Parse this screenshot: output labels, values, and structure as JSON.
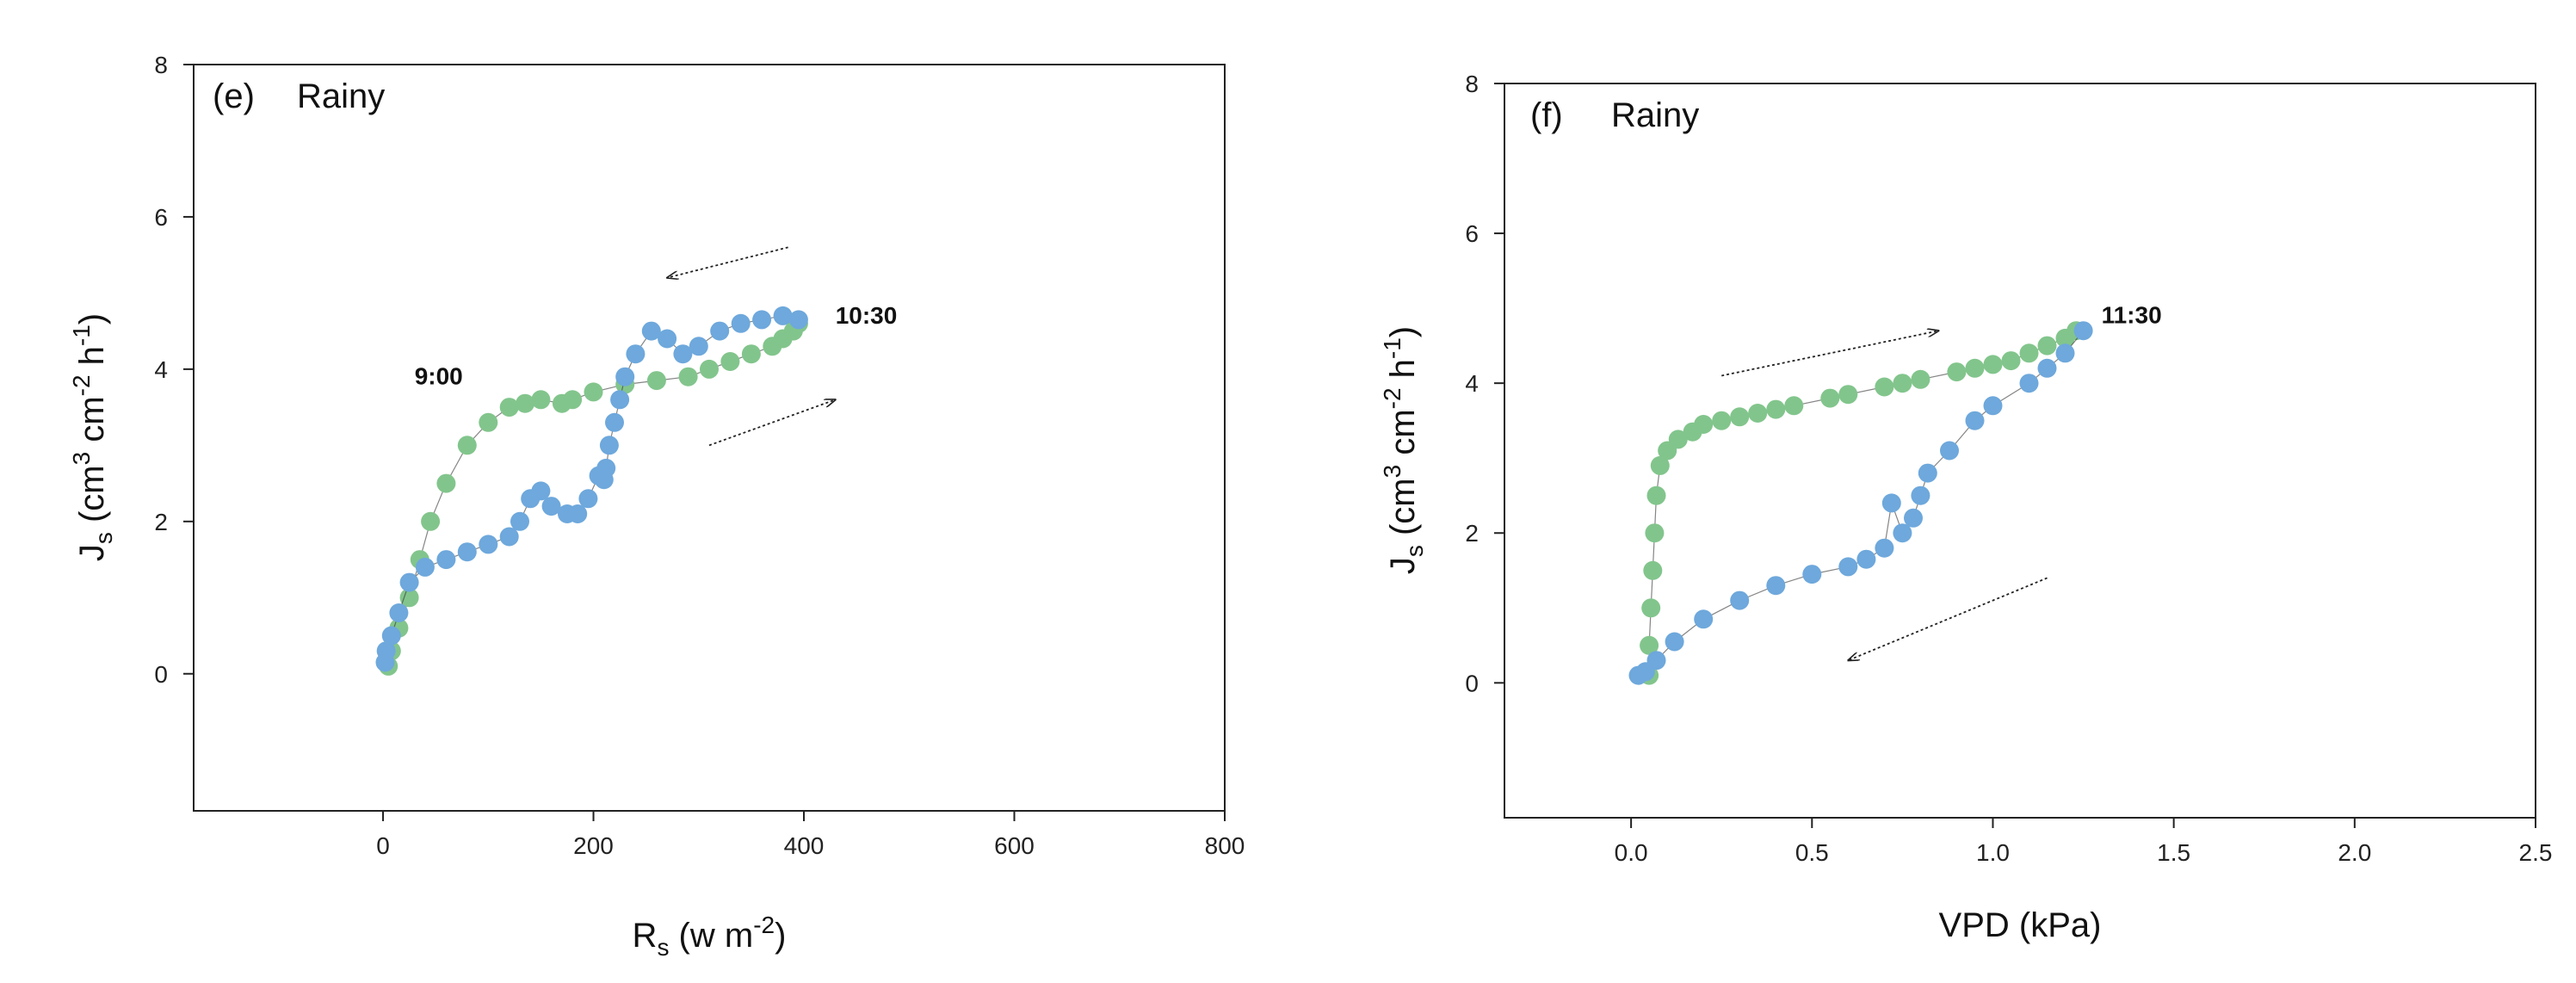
{
  "chart_data": [
    {
      "type": "scatter",
      "panel_label": "(e)",
      "condition": "Rainy",
      "ylabel": {
        "main": "J",
        "sub": "s",
        "unit": " (cm",
        "sup1": "3",
        "unit2": " cm",
        "sup2": "-2",
        "unit3": " h",
        "sup3": "-1",
        "close": ")"
      },
      "xlabel": {
        "main": "R",
        "sub": "s",
        "unit": " (w m",
        "sup1": "-2",
        "close": ")"
      },
      "xlim": [
        -180,
        800
      ],
      "ylim": [
        -1.8,
        8
      ],
      "xticks": [
        0,
        200,
        400,
        600,
        800
      ],
      "yticks": [
        0,
        2,
        4,
        6,
        8
      ],
      "colors": {
        "rising": "#82c58c",
        "falling": "#6ea8dc",
        "outline": "#222222"
      },
      "annotations": [
        {
          "text": "9:00",
          "x": 30,
          "y": 3.8
        },
        {
          "text": "10:30",
          "x": 430,
          "y": 4.6
        }
      ],
      "arrows": [
        {
          "x1": 385,
          "y1": 5.6,
          "x2": 270,
          "y2": 5.2
        },
        {
          "x1": 310,
          "y1": 3.0,
          "x2": 430,
          "y2": 3.6
        }
      ],
      "series": [
        {
          "name": "rising",
          "points": [
            [
              5,
              0.1
            ],
            [
              8,
              0.3
            ],
            [
              15,
              0.6
            ],
            [
              25,
              1.0
            ],
            [
              35,
              1.5
            ],
            [
              45,
              2.0
            ],
            [
              60,
              2.5
            ],
            [
              80,
              3.0
            ],
            [
              100,
              3.3
            ],
            [
              120,
              3.5
            ],
            [
              135,
              3.55
            ],
            [
              150,
              3.6
            ],
            [
              170,
              3.55
            ],
            [
              180,
              3.6
            ],
            [
              200,
              3.7
            ],
            [
              230,
              3.8
            ],
            [
              260,
              3.85
            ],
            [
              290,
              3.9
            ],
            [
              310,
              4.0
            ],
            [
              330,
              4.1
            ],
            [
              350,
              4.2
            ],
            [
              370,
              4.3
            ],
            [
              380,
              4.4
            ],
            [
              390,
              4.5
            ],
            [
              395,
              4.6
            ]
          ]
        },
        {
          "name": "falling",
          "points": [
            [
              395,
              4.65
            ],
            [
              380,
              4.7
            ],
            [
              360,
              4.65
            ],
            [
              340,
              4.6
            ],
            [
              320,
              4.5
            ],
            [
              300,
              4.3
            ],
            [
              285,
              4.2
            ],
            [
              270,
              4.4
            ],
            [
              255,
              4.5
            ],
            [
              240,
              4.2
            ],
            [
              230,
              3.9
            ],
            [
              225,
              3.6
            ],
            [
              220,
              3.3
            ],
            [
              215,
              3.0
            ],
            [
              212,
              2.7
            ],
            [
              210,
              2.55
            ],
            [
              205,
              2.6
            ],
            [
              195,
              2.3
            ],
            [
              185,
              2.1
            ],
            [
              175,
              2.1
            ],
            [
              160,
              2.2
            ],
            [
              150,
              2.4
            ],
            [
              140,
              2.3
            ],
            [
              130,
              2.0
            ],
            [
              120,
              1.8
            ],
            [
              100,
              1.7
            ],
            [
              80,
              1.6
            ],
            [
              60,
              1.5
            ],
            [
              40,
              1.4
            ],
            [
              25,
              1.2
            ],
            [
              15,
              0.8
            ],
            [
              8,
              0.5
            ],
            [
              3,
              0.3
            ],
            [
              2,
              0.15
            ]
          ]
        }
      ]
    },
    {
      "type": "scatter",
      "panel_label": "(f)",
      "condition": "Rainy",
      "ylabel": {
        "main": "J",
        "sub": "s",
        "unit": " (cm",
        "sup1": "3",
        "unit2": " cm",
        "sup2": "-2",
        "unit3": " h",
        "sup3": "-1",
        "close": ")"
      },
      "xlabel": {
        "main": "VPD (kPa)"
      },
      "xlim": [
        -0.35,
        2.5
      ],
      "ylim": [
        -1.8,
        8
      ],
      "xticks": [
        0.0,
        0.5,
        1.0,
        1.5,
        2.0,
        2.5
      ],
      "xtick_labels": [
        "0.0",
        "0.5",
        "1.0",
        "1.5",
        "2.0",
        "2.5"
      ],
      "yticks": [
        0,
        2,
        4,
        6,
        8
      ],
      "colors": {
        "rising": "#82c58c",
        "falling": "#6ea8dc",
        "outline": "#222222"
      },
      "annotations": [
        {
          "text": "11:30",
          "x": 1.3,
          "y": 4.8
        }
      ],
      "arrows": [
        {
          "x1": 0.25,
          "y1": 4.1,
          "x2": 0.85,
          "y2": 4.7
        },
        {
          "x1": 1.15,
          "y1": 1.4,
          "x2": 0.6,
          "y2": 0.3
        }
      ],
      "series": [
        {
          "name": "rising",
          "points": [
            [
              0.05,
              0.1
            ],
            [
              0.05,
              0.5
            ],
            [
              0.055,
              1.0
            ],
            [
              0.06,
              1.5
            ],
            [
              0.065,
              2.0
            ],
            [
              0.07,
              2.5
            ],
            [
              0.08,
              2.9
            ],
            [
              0.1,
              3.1
            ],
            [
              0.13,
              3.25
            ],
            [
              0.17,
              3.35
            ],
            [
              0.2,
              3.45
            ],
            [
              0.25,
              3.5
            ],
            [
              0.3,
              3.55
            ],
            [
              0.35,
              3.6
            ],
            [
              0.4,
              3.65
            ],
            [
              0.45,
              3.7
            ],
            [
              0.55,
              3.8
            ],
            [
              0.6,
              3.85
            ],
            [
              0.7,
              3.95
            ],
            [
              0.75,
              4.0
            ],
            [
              0.8,
              4.05
            ],
            [
              0.9,
              4.15
            ],
            [
              0.95,
              4.2
            ],
            [
              1.0,
              4.25
            ],
            [
              1.05,
              4.3
            ],
            [
              1.1,
              4.4
            ],
            [
              1.15,
              4.5
            ],
            [
              1.2,
              4.6
            ],
            [
              1.23,
              4.7
            ]
          ]
        },
        {
          "name": "falling",
          "points": [
            [
              1.25,
              4.7
            ],
            [
              1.2,
              4.4
            ],
            [
              1.15,
              4.2
            ],
            [
              1.1,
              4.0
            ],
            [
              1.0,
              3.7
            ],
            [
              0.95,
              3.5
            ],
            [
              0.88,
              3.1
            ],
            [
              0.82,
              2.8
            ],
            [
              0.8,
              2.5
            ],
            [
              0.78,
              2.2
            ],
            [
              0.75,
              2.0
            ],
            [
              0.72,
              2.4
            ],
            [
              0.7,
              1.8
            ],
            [
              0.65,
              1.65
            ],
            [
              0.6,
              1.55
            ],
            [
              0.5,
              1.45
            ],
            [
              0.4,
              1.3
            ],
            [
              0.3,
              1.1
            ],
            [
              0.2,
              0.85
            ],
            [
              0.12,
              0.55
            ],
            [
              0.07,
              0.3
            ],
            [
              0.04,
              0.15
            ],
            [
              0.02,
              0.1
            ]
          ]
        }
      ]
    }
  ]
}
